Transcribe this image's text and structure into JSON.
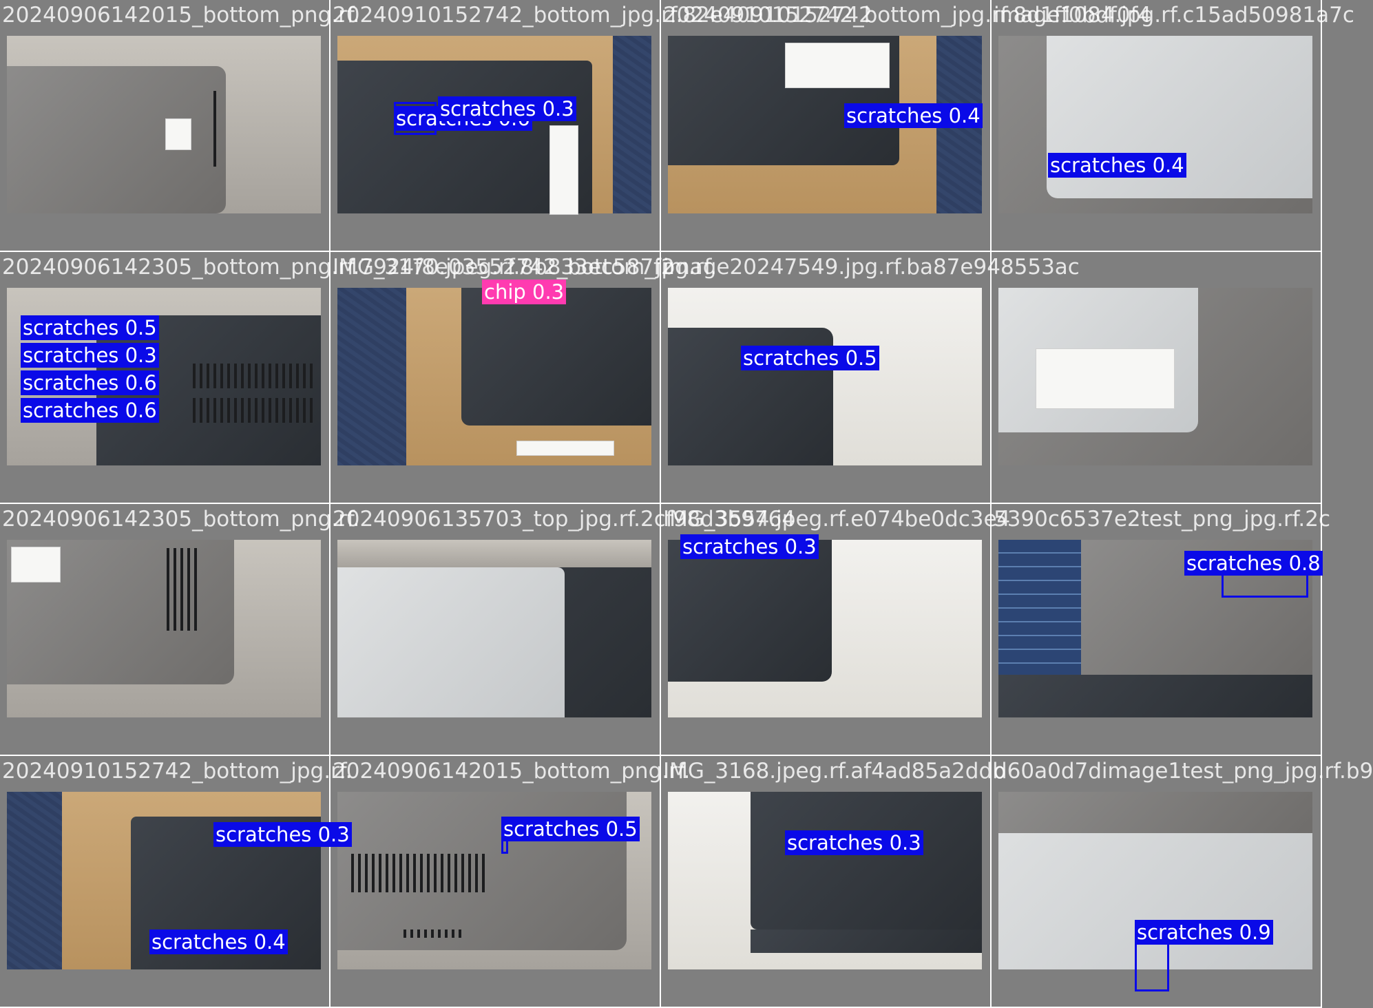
{
  "colors": {
    "background": "#7f7f7f",
    "separator": "#ffffff",
    "scratches": "#0a0ae8",
    "chip": "#ff3bb0"
  },
  "tiles": [
    {
      "caption": "20240906142015_bottom_png.rf.",
      "detections": []
    },
    {
      "caption": "20240910152742_bottom_jpg.rf.82e40910152742",
      "detections": [
        {
          "label": "scratches 0.6",
          "cls": "scratches"
        },
        {
          "label": "scratches 0.3",
          "cls": "scratches"
        }
      ]
    },
    {
      "caption": "20240910152742_bottom_jpg.rf.8d1ff0bdf0f4",
      "detections": [
        {
          "label": "scratches 0.4",
          "cls": "scratches"
        }
      ]
    },
    {
      "caption": "image1084.jpg.rf.c15ad50981a7c",
      "detections": [
        {
          "label": "scratches 0.4",
          "cls": "scratches"
        }
      ]
    },
    {
      "caption": "20240906142305_bottom_png.rf.7924f8e03552742_bottom_jpg.rf.",
      "detections": [
        {
          "label": "scratches 0.5",
          "cls": "scratches"
        },
        {
          "label": "scratches 0.3",
          "cls": "scratches"
        },
        {
          "label": "scratches 0.6",
          "cls": "scratches"
        },
        {
          "label": "scratches 0.6",
          "cls": "scratches"
        }
      ]
    },
    {
      "caption": "IMG_3170.jpeg.rf.8b833ec587f2",
      "detections": [
        {
          "label": "chip 0.3",
          "cls": "chip"
        }
      ]
    },
    {
      "caption": "image20247549.jpg.rf.ba87e948553ac",
      "detections": [
        {
          "label": "scratches 0.5",
          "cls": "scratches"
        }
      ]
    },
    {
      "caption": "",
      "detections": []
    },
    {
      "caption": "20240906142305_bottom_png.rf.",
      "detections": []
    },
    {
      "caption": "20240906135703_top_jpg.rf.2cf98d3b9764",
      "detections": []
    },
    {
      "caption": "IMG_3554.jpeg.rf.e074be0dc3e4",
      "detections": [
        {
          "label": "scratches 0.3",
          "cls": "scratches"
        }
      ]
    },
    {
      "caption": "5390c6537e2test_png_jpg.rf.2c",
      "detections": [
        {
          "label": "scratches 0.8",
          "cls": "scratches"
        }
      ]
    },
    {
      "caption": "20240910152742_bottom_jpg.rf.",
      "detections": [
        {
          "label": "scratches 0.3",
          "cls": "scratches"
        },
        {
          "label": "scratches 0.4",
          "cls": "scratches"
        }
      ]
    },
    {
      "caption": "20240906142015_bottom_png.rf.",
      "detections": [
        {
          "label": "scratches 0.5",
          "cls": "scratches"
        }
      ]
    },
    {
      "caption": "IMG_3168.jpeg.rf.af4ad85a2ddb",
      "detections": [
        {
          "label": "scratches 0.3",
          "cls": "scratches"
        }
      ]
    },
    {
      "caption": "d60a0d7dimage1test_png_jpg.rf.b9",
      "detections": [
        {
          "label": "scratches 0.9",
          "cls": "scratches"
        }
      ]
    }
  ]
}
